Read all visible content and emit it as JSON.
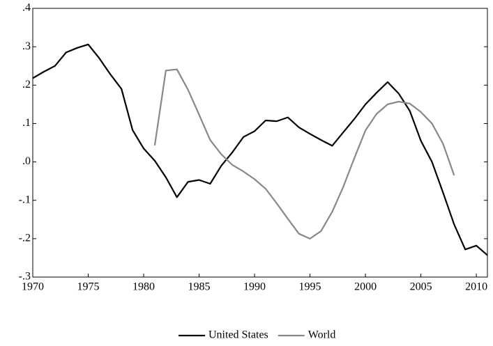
{
  "chart_data": {
    "type": "line",
    "x": [
      1970,
      1971,
      1972,
      1973,
      1974,
      1975,
      1976,
      1977,
      1978,
      1979,
      1980,
      1981,
      1982,
      1983,
      1984,
      1985,
      1986,
      1987,
      1988,
      1989,
      1990,
      1991,
      1992,
      1993,
      1994,
      1995,
      1996,
      1997,
      1998,
      1999,
      2000,
      2001,
      2002,
      2003,
      2004,
      2005,
      2006,
      2007,
      2008,
      2009,
      2010,
      2011
    ],
    "series": [
      {
        "name": "United States",
        "color": "#000000",
        "values": [
          0.218,
          0.235,
          0.25,
          0.285,
          0.297,
          0.306,
          0.27,
          0.228,
          0.19,
          0.083,
          0.035,
          0.003,
          -0.04,
          -0.092,
          -0.052,
          -0.047,
          -0.057,
          -0.01,
          0.025,
          0.065,
          0.08,
          0.108,
          0.106,
          0.116,
          0.09,
          0.073,
          0.057,
          0.042,
          0.077,
          0.112,
          0.15,
          0.18,
          0.208,
          0.178,
          0.133,
          0.055,
          0.0,
          -0.08,
          -0.163,
          -0.228,
          -0.218,
          -0.243
        ]
      },
      {
        "name": "World",
        "color": "#888888",
        "values": [
          null,
          null,
          null,
          null,
          null,
          null,
          null,
          null,
          null,
          null,
          null,
          0.043,
          0.238,
          0.241,
          0.188,
          0.123,
          0.057,
          0.02,
          -0.008,
          -0.025,
          -0.045,
          -0.07,
          -0.108,
          -0.148,
          -0.187,
          -0.2,
          -0.18,
          -0.13,
          -0.065,
          0.01,
          0.082,
          0.125,
          0.15,
          0.157,
          0.152,
          0.13,
          0.1,
          0.047,
          -0.035,
          null,
          null,
          null
        ]
      }
    ],
    "xlim": [
      1970,
      2011
    ],
    "xticks": [
      1970,
      1975,
      1980,
      1985,
      1990,
      1995,
      2000,
      2005,
      2010
    ],
    "ylim": [
      -0.3,
      0.4
    ],
    "yticks": [
      {
        "value": -0.3,
        "label": "-.3"
      },
      {
        "value": -0.2,
        "label": "-.2"
      },
      {
        "value": -0.1,
        "label": "-.1"
      },
      {
        "value": 0,
        "label": ".0"
      },
      {
        "value": 0.1,
        "label": ".1"
      },
      {
        "value": 0.2,
        "label": ".2"
      },
      {
        "value": 0.3,
        "label": ".3"
      },
      {
        "value": 0.4,
        "label": ".4"
      }
    ],
    "legend": "bottom"
  }
}
